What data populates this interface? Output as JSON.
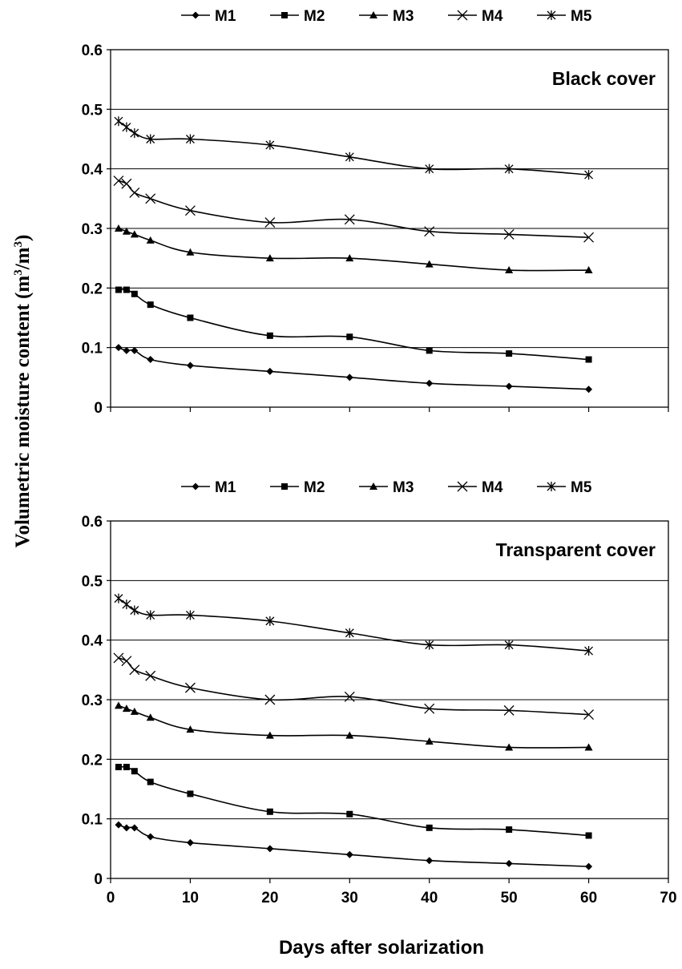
{
  "chart_data": [
    {
      "type": "line",
      "title": "Black cover",
      "xlabel": "",
      "ylabel": "Volumetric moisture content (m3/m3)",
      "ylim": [
        0,
        0.6
      ],
      "yticks": [
        "0",
        "0.1",
        "0.2",
        "0.3",
        "0.4",
        "0.5",
        "0.6"
      ],
      "xlim": [
        0,
        70
      ],
      "legend": "top",
      "grid": "horizontal",
      "series": [
        {
          "name": "M1",
          "marker": "diamond",
          "x": [
            1,
            2,
            3,
            5,
            10,
            20,
            30,
            40,
            50,
            60
          ],
          "values": [
            0.1,
            0.095,
            0.095,
            0.08,
            0.07,
            0.06,
            0.05,
            0.04,
            0.035,
            0.03
          ]
        },
        {
          "name": "M2",
          "marker": "square",
          "x": [
            1,
            2,
            3,
            5,
            10,
            20,
            30,
            40,
            50,
            60
          ],
          "values": [
            0.197,
            0.197,
            0.19,
            0.172,
            0.15,
            0.12,
            0.118,
            0.095,
            0.09,
            0.08
          ]
        },
        {
          "name": "M3",
          "marker": "triangle",
          "x": [
            1,
            2,
            3,
            5,
            10,
            20,
            30,
            40,
            50,
            60
          ],
          "values": [
            0.3,
            0.295,
            0.29,
            0.28,
            0.26,
            0.25,
            0.25,
            0.24,
            0.23,
            0.23
          ]
        },
        {
          "name": "M4",
          "marker": "x",
          "x": [
            1,
            2,
            3,
            5,
            10,
            20,
            30,
            40,
            50,
            60
          ],
          "values": [
            0.38,
            0.375,
            0.36,
            0.35,
            0.33,
            0.31,
            0.315,
            0.295,
            0.29,
            0.285
          ]
        },
        {
          "name": "M5",
          "marker": "star",
          "x": [
            1,
            2,
            3,
            5,
            10,
            20,
            30,
            40,
            50,
            60
          ],
          "values": [
            0.48,
            0.47,
            0.46,
            0.45,
            0.45,
            0.44,
            0.42,
            0.4,
            0.4,
            0.39
          ]
        }
      ]
    },
    {
      "type": "line",
      "title": "Transparent cover",
      "xlabel": "Days after solarization",
      "ylabel": "Volumetric moisture content (m3/m3)",
      "ylim": [
        0,
        0.6
      ],
      "yticks": [
        "0",
        "0.1",
        "0.2",
        "0.3",
        "0.4",
        "0.5",
        "0.6"
      ],
      "xlim": [
        0,
        70
      ],
      "xticks": [
        "0",
        "10",
        "20",
        "30",
        "40",
        "50",
        "60",
        "70"
      ],
      "legend": "top",
      "grid": "horizontal",
      "series": [
        {
          "name": "M1",
          "marker": "diamond",
          "x": [
            1,
            2,
            3,
            5,
            10,
            20,
            30,
            40,
            50,
            60
          ],
          "values": [
            0.09,
            0.085,
            0.085,
            0.07,
            0.06,
            0.05,
            0.04,
            0.03,
            0.025,
            0.02
          ]
        },
        {
          "name": "M2",
          "marker": "square",
          "x": [
            1,
            2,
            3,
            5,
            10,
            20,
            30,
            40,
            50,
            60
          ],
          "values": [
            0.187,
            0.187,
            0.18,
            0.162,
            0.142,
            0.112,
            0.108,
            0.085,
            0.082,
            0.072
          ]
        },
        {
          "name": "M3",
          "marker": "triangle",
          "x": [
            1,
            2,
            3,
            5,
            10,
            20,
            30,
            40,
            50,
            60
          ],
          "values": [
            0.29,
            0.285,
            0.28,
            0.27,
            0.25,
            0.24,
            0.24,
            0.23,
            0.22,
            0.22
          ]
        },
        {
          "name": "M4",
          "marker": "x",
          "x": [
            1,
            2,
            3,
            5,
            10,
            20,
            30,
            40,
            50,
            60
          ],
          "values": [
            0.37,
            0.365,
            0.35,
            0.34,
            0.32,
            0.3,
            0.305,
            0.285,
            0.282,
            0.275
          ]
        },
        {
          "name": "M5",
          "marker": "star",
          "x": [
            1,
            2,
            3,
            5,
            10,
            20,
            30,
            40,
            50,
            60
          ],
          "values": [
            0.47,
            0.46,
            0.45,
            0.442,
            0.442,
            0.432,
            0.412,
            0.392,
            0.392,
            0.382
          ]
        }
      ]
    }
  ]
}
